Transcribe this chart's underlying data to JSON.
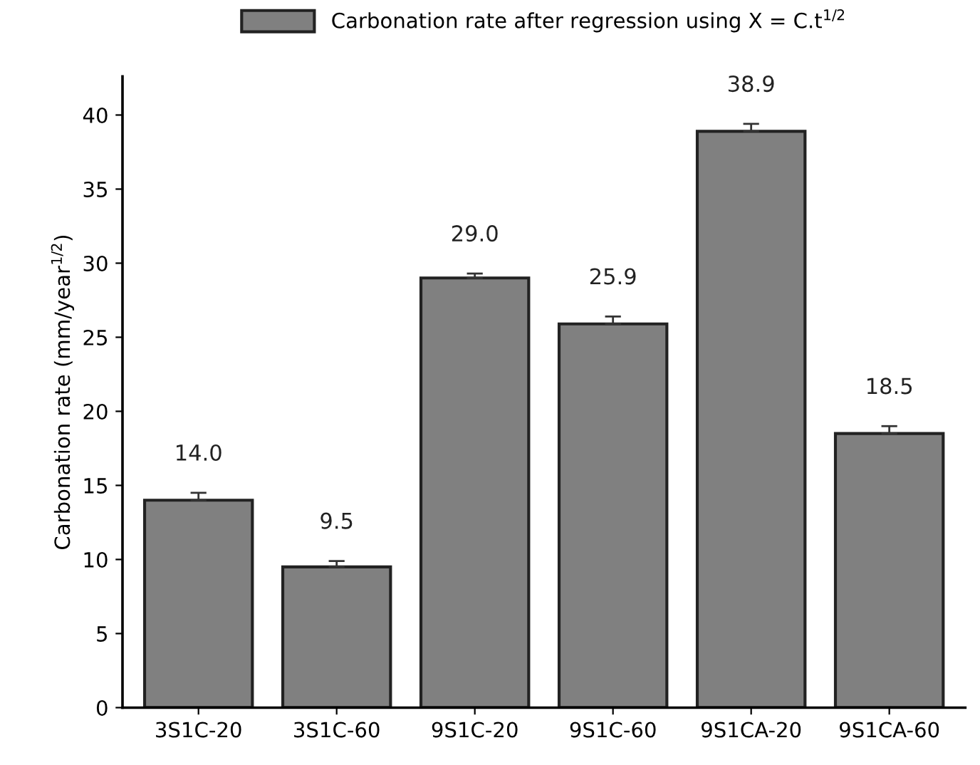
{
  "chart_data": {
    "type": "bar",
    "ylabel": "Carbonation rate (mm/year$^{1/2}$)",
    "categories": [
      "3S1C-20",
      "3S1C-60",
      "9S1C-20",
      "9S1C-60",
      "9S1CA-20",
      "9S1CA-60"
    ],
    "series": [
      {
        "name": "Carbonation rate after regression using X = C.t$^{1/2}$",
        "color": "#808080",
        "values": [
          14.0,
          9.5,
          29.0,
          25.9,
          38.9,
          18.5
        ],
        "value_labels": [
          "14.0",
          "9.5",
          "29.0",
          "25.9",
          "38.9",
          "18.5"
        ],
        "errors": [
          [
            14.0,
            14.5
          ],
          [
            9.5,
            9.9
          ],
          [
            29.0,
            29.3
          ],
          [
            25.9,
            26.4
          ],
          [
            38.9,
            39.4
          ],
          [
            18.5,
            19.0
          ]
        ]
      }
    ],
    "ylim": [
      0,
      42.6
    ],
    "yticks": [
      0,
      5,
      10,
      15,
      20,
      25,
      30,
      35,
      40
    ],
    "grid": false,
    "legend": "top"
  }
}
